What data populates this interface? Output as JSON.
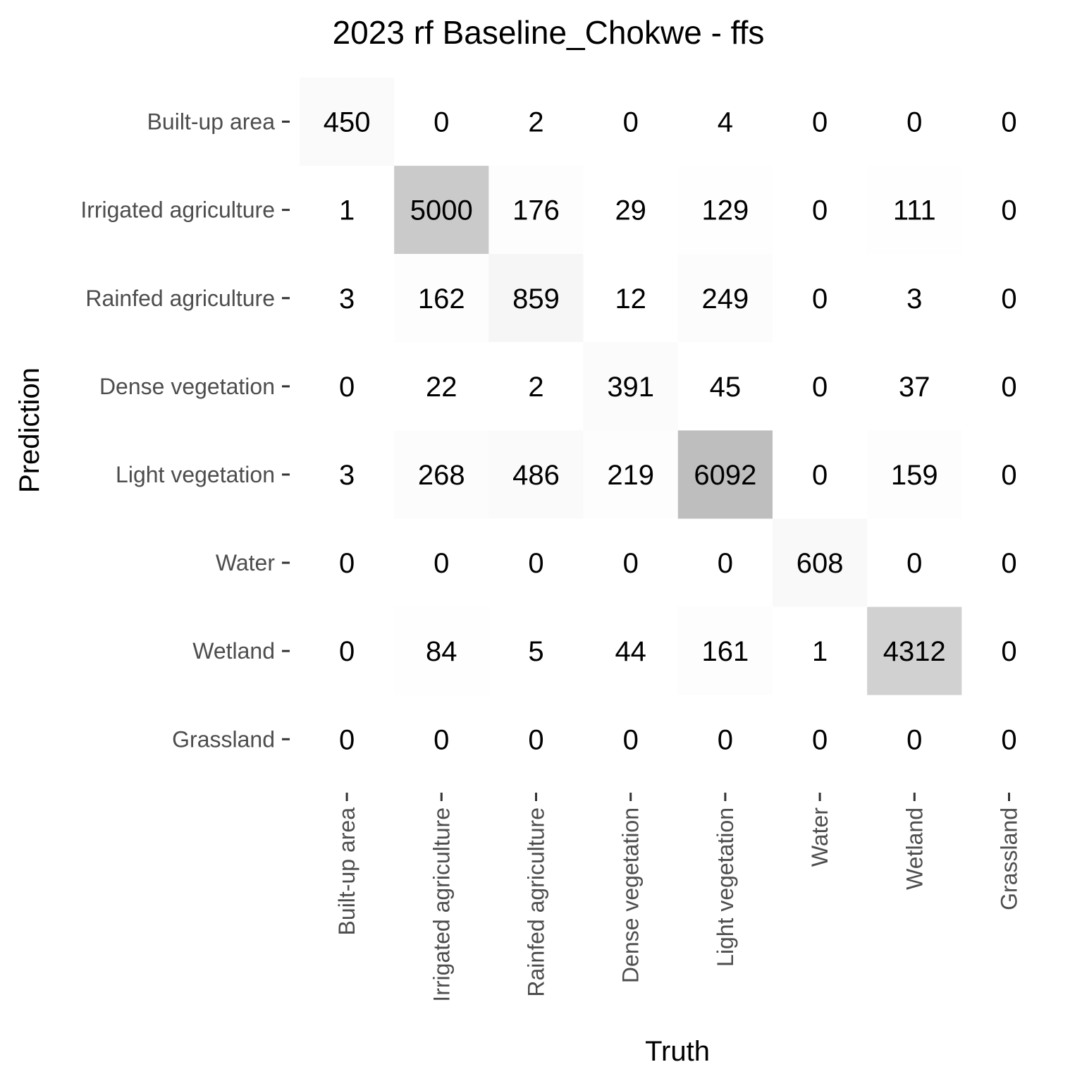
{
  "chart_data": {
    "type": "heatmap",
    "title": "2023 rf Baseline_Chokwe - ffs",
    "xlabel": "Truth",
    "ylabel": "Prediction",
    "x_categories": [
      "Built-up area",
      "Irrigated agriculture",
      "Rainfed agriculture",
      "Dense vegetation",
      "Light vegetation",
      "Water",
      "Wetland",
      "Grassland"
    ],
    "y_categories": [
      "Built-up area",
      "Irrigated agriculture",
      "Rainfed agriculture",
      "Dense vegetation",
      "Light vegetation",
      "Water",
      "Wetland",
      "Grassland"
    ],
    "values": [
      [
        450,
        0,
        2,
        0,
        4,
        0,
        0,
        0
      ],
      [
        1,
        5000,
        176,
        29,
        129,
        0,
        111,
        0
      ],
      [
        3,
        162,
        859,
        12,
        249,
        0,
        3,
        0
      ],
      [
        0,
        22,
        2,
        391,
        45,
        0,
        37,
        0
      ],
      [
        3,
        268,
        486,
        219,
        6092,
        0,
        159,
        0
      ],
      [
        0,
        0,
        0,
        0,
        0,
        608,
        0,
        0
      ],
      [
        0,
        84,
        5,
        44,
        161,
        1,
        4312,
        0
      ],
      [
        0,
        0,
        0,
        0,
        0,
        0,
        0,
        0
      ]
    ],
    "color_scale": {
      "low": "#ffffff",
      "high": "#bebebe"
    },
    "grid": false,
    "legend": "none"
  }
}
